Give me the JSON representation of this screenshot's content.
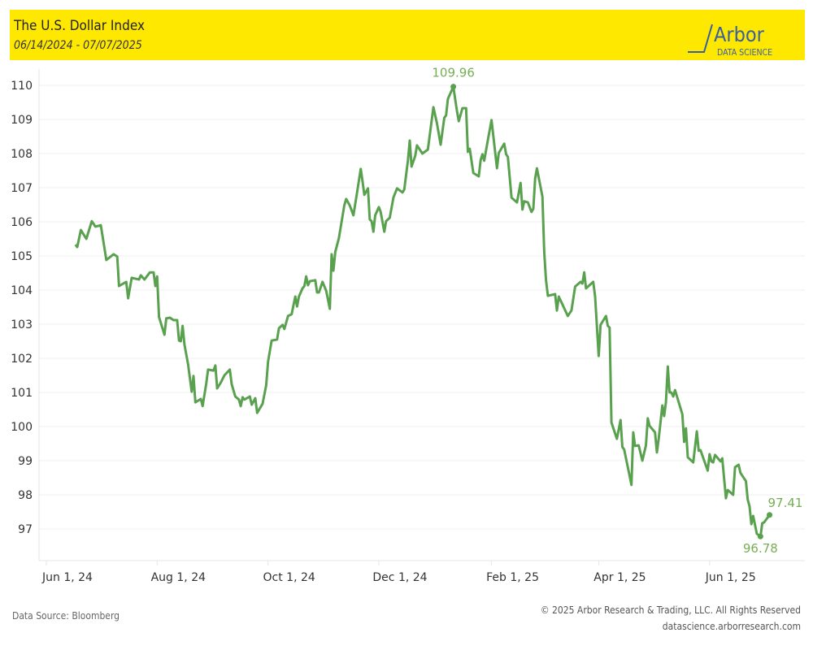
{
  "header": {
    "title": "The U.S. Dollar Index",
    "subtitle": "06/14/2024 - 07/07/2025",
    "logo_text": "Arbor",
    "logo_subtext": "DATA SCIENCE"
  },
  "footer": {
    "source": "Data Source: Bloomberg",
    "copyright": "© 2025 Arbor Research & Trading, LLC. All Rights Reserved",
    "website": "datascience.arborresearch.com"
  },
  "colors": {
    "line": "#59A14F",
    "label": "#76AE55",
    "header_bg": "#FFE800",
    "logo": "#3A5FA0"
  },
  "chart_data": {
    "type": "line",
    "title": "The U.S. Dollar Index",
    "xlabel": "",
    "ylabel": "",
    "x_unit": "days since Jun 1, 2024",
    "xlim": [
      -4,
      418
    ],
    "ylim": [
      96.3,
      110.4
    ],
    "grid": true,
    "y_ticks": [
      97,
      98,
      99,
      100,
      101,
      102,
      103,
      104,
      105,
      106,
      107,
      108,
      109,
      110
    ],
    "x_ticks": [
      {
        "x": 0,
        "label": "Jun 1, 24"
      },
      {
        "x": 61,
        "label": "Aug 1, 24"
      },
      {
        "x": 122,
        "label": "Oct 1, 24"
      },
      {
        "x": 183,
        "label": "Dec 1, 24"
      },
      {
        "x": 245,
        "label": "Feb 1, 25"
      },
      {
        "x": 304,
        "label": "Apr 1, 25"
      },
      {
        "x": 365,
        "label": "Jun 1, 25"
      }
    ],
    "annotations": [
      {
        "label": "109.96",
        "x": 224,
        "y": 109.96,
        "pos": "above"
      },
      {
        "label": "97.41",
        "x": 398,
        "y": 97.41,
        "pos": "above-right"
      },
      {
        "label": "96.78",
        "x": 393,
        "y": 96.78,
        "pos": "below"
      }
    ],
    "series": [
      {
        "name": "U.S. Dollar Index",
        "points": [
          [
            16,
            105.33
          ],
          [
            17,
            105.26
          ],
          [
            19,
            105.76
          ],
          [
            22,
            105.5
          ],
          [
            25,
            106.02
          ],
          [
            27,
            105.86
          ],
          [
            30,
            105.9
          ],
          [
            33,
            104.88
          ],
          [
            37,
            105.05
          ],
          [
            39,
            104.98
          ],
          [
            40,
            104.12
          ],
          [
            44,
            104.24
          ],
          [
            45,
            103.76
          ],
          [
            47,
            104.36
          ],
          [
            51,
            104.31
          ],
          [
            52,
            104.43
          ],
          [
            54,
            104.31
          ],
          [
            57,
            104.52
          ],
          [
            59,
            104.52
          ],
          [
            60,
            104.12
          ],
          [
            61,
            104.4
          ],
          [
            62,
            103.21
          ],
          [
            65,
            102.69
          ],
          [
            66,
            103.17
          ],
          [
            68,
            103.19
          ],
          [
            70,
            103.12
          ],
          [
            72,
            103.12
          ],
          [
            73,
            102.52
          ],
          [
            74,
            102.5
          ],
          [
            75,
            102.95
          ],
          [
            76,
            102.4
          ],
          [
            78,
            101.83
          ],
          [
            80,
            101.02
          ],
          [
            81,
            101.48
          ],
          [
            82,
            100.71
          ],
          [
            85,
            100.81
          ],
          [
            86,
            100.6
          ],
          [
            88,
            101.26
          ],
          [
            89,
            101.67
          ],
          [
            92,
            101.64
          ],
          [
            93,
            101.79
          ],
          [
            94,
            101.12
          ],
          [
            96,
            101.29
          ],
          [
            98,
            101.5
          ],
          [
            101,
            101.67
          ],
          [
            102,
            101.24
          ],
          [
            104,
            100.88
          ],
          [
            106,
            100.79
          ],
          [
            107,
            100.6
          ],
          [
            108,
            100.86
          ],
          [
            109,
            100.79
          ],
          [
            112,
            100.88
          ],
          [
            113,
            100.64
          ],
          [
            115,
            100.83
          ],
          [
            116,
            100.4
          ],
          [
            119,
            100.67
          ],
          [
            121,
            101.21
          ],
          [
            122,
            101.9
          ],
          [
            124,
            102.52
          ],
          [
            127,
            102.55
          ],
          [
            128,
            102.88
          ],
          [
            130,
            102.98
          ],
          [
            131,
            102.86
          ],
          [
            133,
            103.24
          ],
          [
            135,
            103.29
          ],
          [
            137,
            103.81
          ],
          [
            138,
            103.52
          ],
          [
            139,
            103.81
          ],
          [
            141,
            104.05
          ],
          [
            142,
            104.12
          ],
          [
            143,
            104.4
          ],
          [
            144,
            104.14
          ],
          [
            145,
            104.26
          ],
          [
            148,
            104.29
          ],
          [
            149,
            103.93
          ],
          [
            150,
            103.93
          ],
          [
            152,
            104.24
          ],
          [
            154,
            103.98
          ],
          [
            156,
            103.45
          ],
          [
            157,
            105.05
          ],
          [
            158,
            104.57
          ],
          [
            159,
            105.12
          ],
          [
            161,
            105.52
          ],
          [
            164,
            106.48
          ],
          [
            165,
            106.67
          ],
          [
            167,
            106.48
          ],
          [
            169,
            106.19
          ],
          [
            171,
            106.86
          ],
          [
            173,
            107.55
          ],
          [
            174,
            107.19
          ],
          [
            175,
            106.79
          ],
          [
            177,
            106.98
          ],
          [
            178,
            106.07
          ],
          [
            179,
            106.02
          ],
          [
            180,
            105.71
          ],
          [
            181,
            106.19
          ],
          [
            183,
            106.43
          ],
          [
            184,
            106.29
          ],
          [
            186,
            105.71
          ],
          [
            187,
            106.02
          ],
          [
            189,
            106.12
          ],
          [
            191,
            106.71
          ],
          [
            193,
            106.98
          ],
          [
            196,
            106.86
          ],
          [
            197,
            106.95
          ],
          [
            199,
            107.81
          ],
          [
            200,
            108.38
          ],
          [
            201,
            107.62
          ],
          [
            203,
            107.93
          ],
          [
            204,
            108.24
          ],
          [
            207,
            108.0
          ],
          [
            210,
            108.12
          ],
          [
            213,
            109.36
          ],
          [
            215,
            108.88
          ],
          [
            217,
            108.26
          ],
          [
            219,
            109.05
          ],
          [
            220,
            109.12
          ],
          [
            221,
            109.6
          ],
          [
            224,
            109.96
          ],
          [
            226,
            109.24
          ],
          [
            227,
            108.95
          ],
          [
            229,
            109.33
          ],
          [
            231,
            109.33
          ],
          [
            232,
            108.05
          ],
          [
            233,
            108.14
          ],
          [
            235,
            107.43
          ],
          [
            238,
            107.33
          ],
          [
            239,
            107.81
          ],
          [
            240,
            107.98
          ],
          [
            241,
            107.79
          ],
          [
            243,
            108.4
          ],
          [
            245,
            108.98
          ],
          [
            247,
            108.05
          ],
          [
            248,
            107.57
          ],
          [
            249,
            108.02
          ],
          [
            252,
            108.29
          ],
          [
            253,
            107.98
          ],
          [
            254,
            107.9
          ],
          [
            256,
            106.71
          ],
          [
            259,
            106.57
          ],
          [
            261,
            107.14
          ],
          [
            262,
            106.36
          ],
          [
            263,
            106.6
          ],
          [
            265,
            106.57
          ],
          [
            267,
            106.29
          ],
          [
            268,
            106.38
          ],
          [
            269,
            107.26
          ],
          [
            270,
            107.57
          ],
          [
            273,
            106.74
          ],
          [
            274,
            105.12
          ],
          [
            275,
            104.29
          ],
          [
            276,
            103.83
          ],
          [
            280,
            103.88
          ],
          [
            281,
            103.4
          ],
          [
            282,
            103.81
          ],
          [
            287,
            103.24
          ],
          [
            289,
            103.4
          ],
          [
            291,
            104.1
          ],
          [
            294,
            104.24
          ],
          [
            295,
            104.19
          ],
          [
            296,
            104.52
          ],
          [
            297,
            104.05
          ],
          [
            301,
            104.24
          ],
          [
            302,
            103.81
          ],
          [
            304,
            102.07
          ],
          [
            305,
            102.98
          ],
          [
            308,
            103.24
          ],
          [
            309,
            102.95
          ],
          [
            310,
            102.9
          ],
          [
            311,
            100.12
          ],
          [
            314,
            99.64
          ],
          [
            316,
            100.19
          ],
          [
            317,
            99.4
          ],
          [
            318,
            99.33
          ],
          [
            322,
            98.29
          ],
          [
            323,
            99.83
          ],
          [
            324,
            99.43
          ],
          [
            326,
            99.45
          ],
          [
            328,
            99.0
          ],
          [
            330,
            99.45
          ],
          [
            331,
            100.24
          ],
          [
            332,
            100.02
          ],
          [
            335,
            99.83
          ],
          [
            336,
            99.24
          ],
          [
            337,
            99.64
          ],
          [
            339,
            100.62
          ],
          [
            340,
            100.31
          ],
          [
            341,
            100.71
          ],
          [
            342,
            101.76
          ],
          [
            343,
            101.0
          ],
          [
            344,
            101.0
          ],
          [
            345,
            100.88
          ],
          [
            346,
            101.07
          ],
          [
            350,
            100.36
          ],
          [
            351,
            99.55
          ],
          [
            352,
            99.95
          ],
          [
            353,
            99.1
          ],
          [
            356,
            98.95
          ],
          [
            358,
            99.86
          ],
          [
            359,
            99.29
          ],
          [
            360,
            99.31
          ],
          [
            364,
            98.71
          ],
          [
            365,
            99.19
          ],
          [
            366,
            98.98
          ],
          [
            367,
            98.95
          ],
          [
            368,
            99.17
          ],
          [
            371,
            98.98
          ],
          [
            372,
            99.07
          ],
          [
            374,
            97.9
          ],
          [
            375,
            98.14
          ],
          [
            378,
            98.0
          ],
          [
            379,
            98.81
          ],
          [
            381,
            98.88
          ],
          [
            382,
            98.64
          ],
          [
            385,
            98.4
          ],
          [
            386,
            97.86
          ],
          [
            387,
            97.67
          ],
          [
            388,
            97.14
          ],
          [
            389,
            97.38
          ],
          [
            391,
            96.86
          ],
          [
            393,
            96.78
          ],
          [
            394,
            97.17
          ],
          [
            395,
            97.19
          ],
          [
            398,
            97.41
          ]
        ]
      }
    ]
  }
}
